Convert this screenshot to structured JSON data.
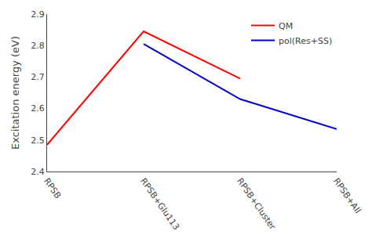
{
  "chart_data": {
    "type": "line",
    "categories": [
      "RPSB",
      "RPSB+Glu113",
      "RPSB+Cluster",
      "RPSB+All"
    ],
    "series": [
      {
        "name": "QM",
        "color": "#ff0000",
        "values": [
          2.485,
          2.845,
          2.695,
          null
        ]
      },
      {
        "name": "pol(Res+SS)",
        "color": "#0000cc",
        "values": [
          null,
          2.805,
          2.63,
          2.535
        ]
      }
    ],
    "ylabel": "Excitation energy (eV)",
    "ylim": [
      2.4,
      2.9
    ],
    "yticks": [
      2.4,
      2.5,
      2.6,
      2.7,
      2.8,
      2.9
    ],
    "grid": false,
    "legend": "upper right"
  }
}
